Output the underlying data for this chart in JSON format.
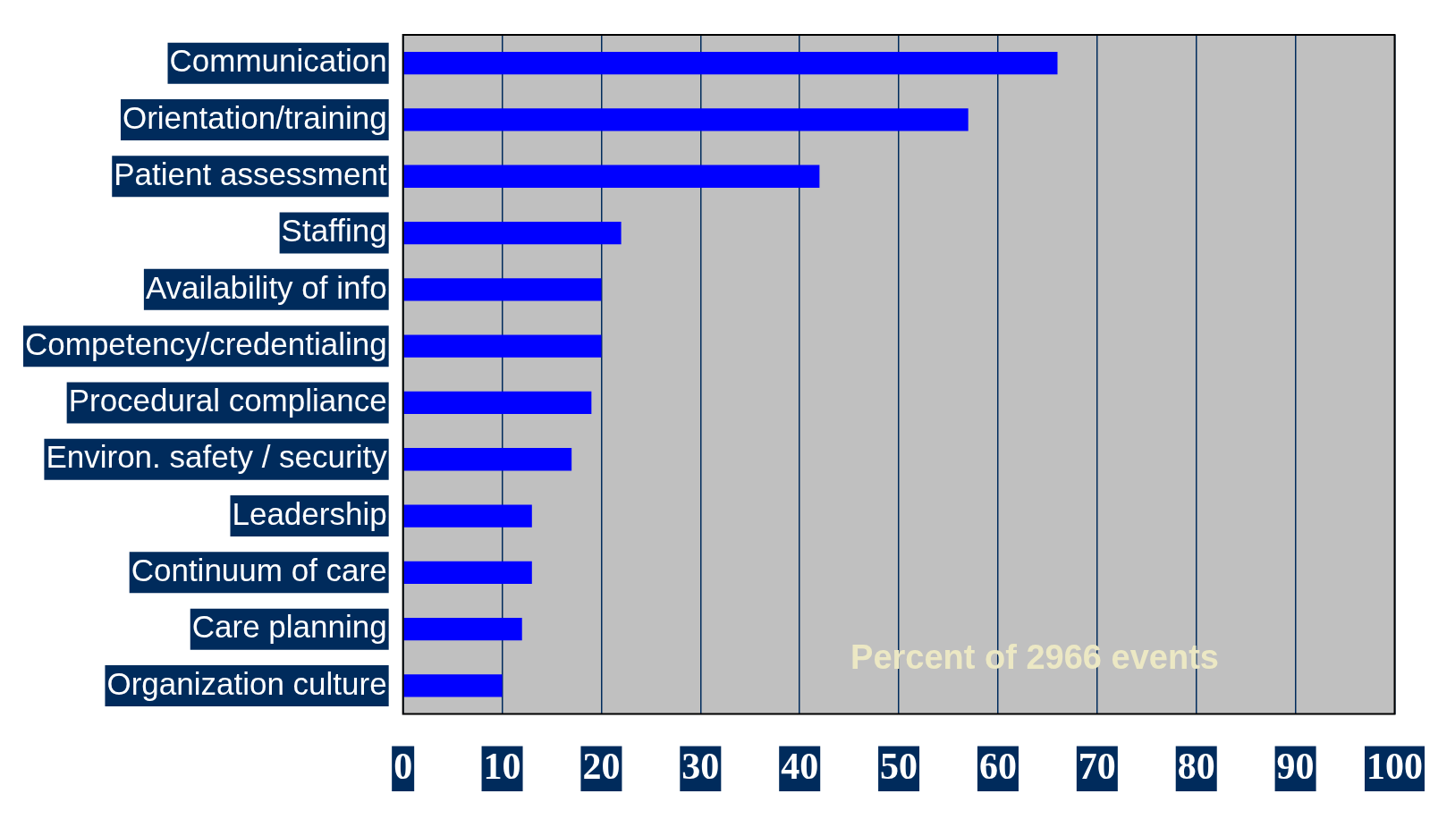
{
  "chart_data": {
    "type": "bar",
    "orientation": "horizontal",
    "categories": [
      "Communication",
      "Orientation/training",
      "Patient assessment",
      "Staffing",
      "Availability of info",
      "Competency/credentialing",
      "Procedural compliance",
      "Environ. safety / security",
      "Leadership",
      "Continuum of care",
      "Care planning",
      "Organization culture"
    ],
    "values": [
      66,
      57,
      42,
      22,
      20,
      20,
      19,
      17,
      13,
      13,
      12,
      10
    ],
    "color": "#0000ff",
    "xlim": [
      0,
      100
    ],
    "xticks": [
      0,
      10,
      20,
      30,
      40,
      50,
      60,
      70,
      80,
      90,
      100
    ],
    "grid": "x",
    "legend": false,
    "annotations": [
      "Percent of 2966 events"
    ]
  }
}
